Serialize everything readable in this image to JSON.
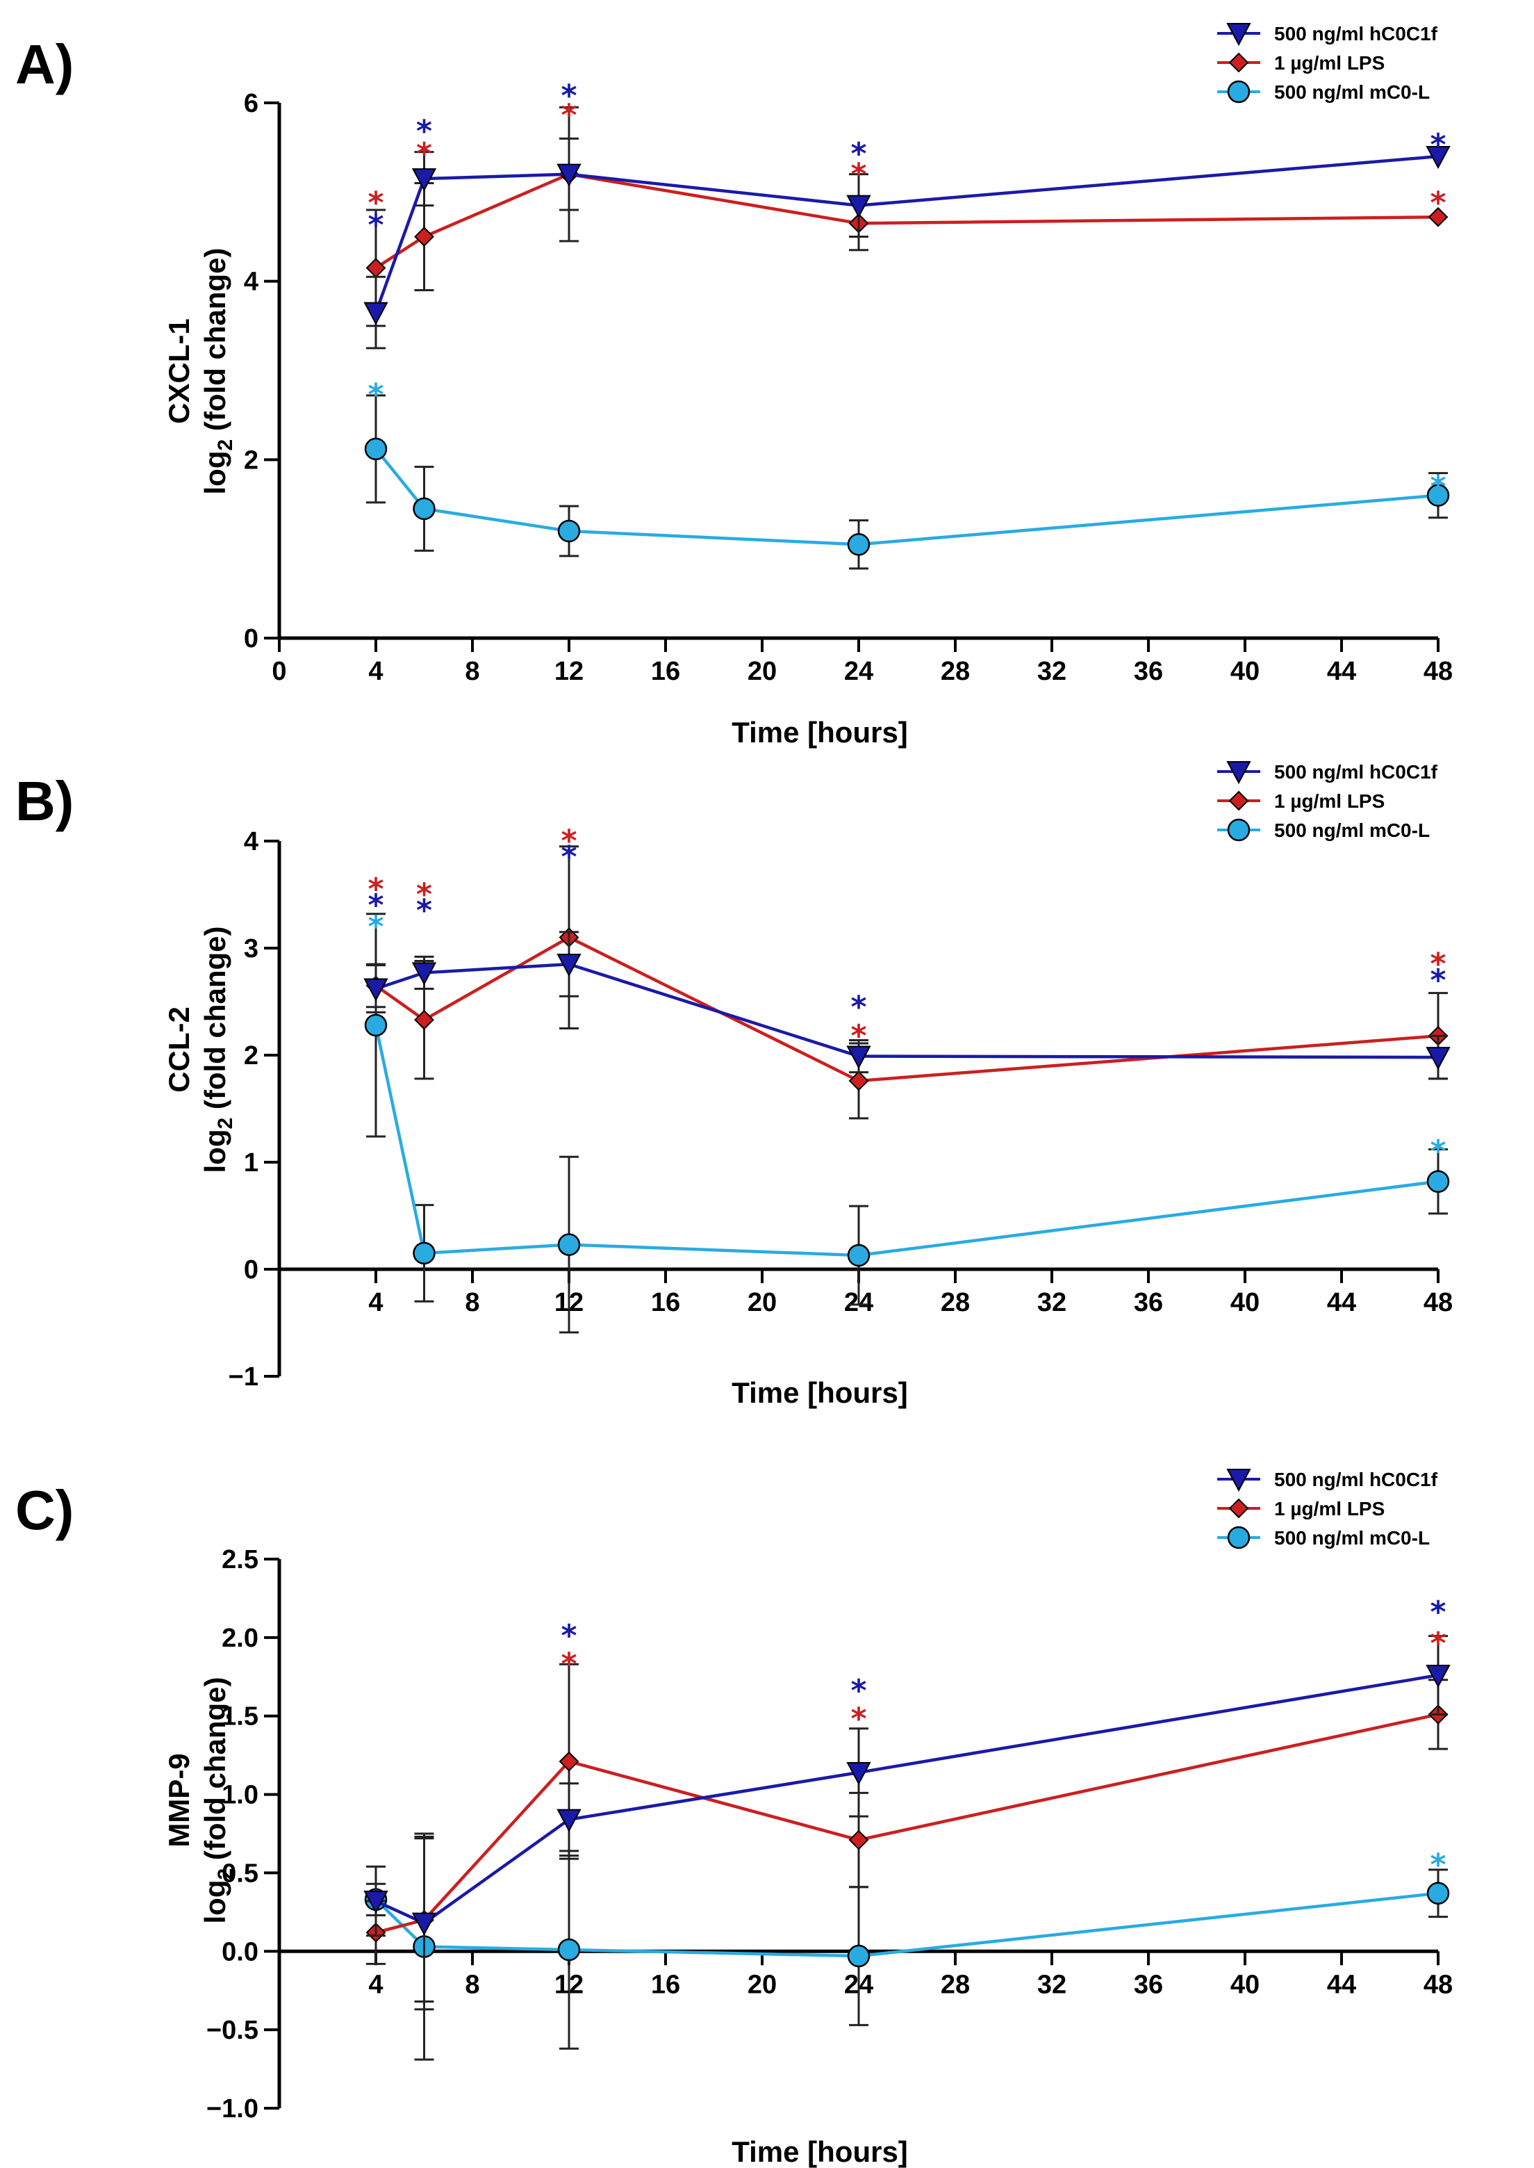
{
  "colors": {
    "hC0C1f": "#1a1aa8",
    "LPS": "#cc1f1f",
    "mC0L": "#29abe2",
    "axis": "#000000",
    "errorbar": "#222222"
  },
  "legend": {
    "hC0C1f": "500 ng/ml hC0C1f",
    "LPS": "1 µg/ml LPS",
    "mC0L": "500 ng/ml mC0-L"
  },
  "chart_data": [
    {
      "panel": "A)",
      "type": "line",
      "xlabel": "Time [hours]",
      "ylabel_line1": "CXCL-1",
      "ylabel_line2": "log",
      "ylabel_sub": "2",
      "ylabel_line3": " (fold change)",
      "xlim": [
        0,
        48
      ],
      "ylim": [
        0,
        6
      ],
      "xticks": [
        0,
        4,
        8,
        12,
        16,
        20,
        24,
        28,
        32,
        36,
        40,
        44,
        48
      ],
      "yticks": [
        0,
        2,
        4,
        6
      ],
      "x": [
        4,
        6,
        12,
        24,
        48
      ],
      "series": [
        {
          "key": "hC0C1f",
          "values": [
            3.65,
            5.15,
            5.2,
            4.85,
            5.4
          ],
          "err": [
            0.4,
            0.3,
            0.4,
            0.35,
            0.0
          ]
        },
        {
          "key": "LPS",
          "values": [
            4.15,
            4.5,
            5.2,
            4.65,
            4.72
          ],
          "err": [
            0.65,
            0.6,
            0.75,
            0.3,
            0.0
          ]
        },
        {
          "key": "mC0L",
          "values": [
            2.12,
            1.45,
            1.2,
            1.05,
            1.6
          ],
          "err": [
            0.6,
            0.47,
            0.28,
            0.27,
            0.25
          ]
        }
      ],
      "stars": [
        {
          "x": 4,
          "marks": [
            {
              "c": "LPS",
              "y": 5.0
            },
            {
              "c": "hC0C1f",
              "y": 4.75
            },
            {
              "c": "mC0L",
              "y": 2.85
            }
          ]
        },
        {
          "x": 6,
          "marks": [
            {
              "c": "hC0C1f",
              "y": 5.8
            },
            {
              "c": "LPS",
              "y": 5.55
            }
          ]
        },
        {
          "x": 12,
          "marks": [
            {
              "c": "hC0C1f",
              "y": 6.2
            },
            {
              "c": "LPS",
              "y": 5.98
            }
          ]
        },
        {
          "x": 24,
          "marks": [
            {
              "c": "hC0C1f",
              "y": 5.55
            },
            {
              "c": "LPS",
              "y": 5.32
            }
          ]
        },
        {
          "x": 48,
          "marks": [
            {
              "c": "hC0C1f",
              "y": 5.65
            },
            {
              "c": "LPS",
              "y": 5.0
            },
            {
              "c": "mC0L",
              "y": 1.82
            }
          ]
        }
      ]
    },
    {
      "panel": "B)",
      "type": "line",
      "xlabel": "Time [hours]",
      "ylabel_line1": "CCL-2",
      "ylabel_line2": "log",
      "ylabel_sub": "2",
      "ylabel_line3": " (fold change)",
      "xlim": [
        0,
        48
      ],
      "ylim": [
        -1,
        4
      ],
      "xticks": [
        4,
        8,
        12,
        16,
        20,
        24,
        28,
        32,
        36,
        40,
        44,
        48
      ],
      "yticks": [
        -1,
        0,
        1,
        2,
        3,
        4
      ],
      "x": [
        4,
        6,
        12,
        24,
        48
      ],
      "series": [
        {
          "key": "hC0C1f",
          "values": [
            2.62,
            2.77,
            2.85,
            1.99,
            1.98
          ],
          "err": [
            0.22,
            0.15,
            0.3,
            0.15,
            0.2
          ]
        },
        {
          "key": "LPS",
          "values": [
            2.65,
            2.33,
            3.1,
            1.76,
            2.18
          ],
          "err": [
            0.2,
            0.55,
            0.85,
            0.35,
            0.4
          ]
        },
        {
          "key": "mC0L",
          "values": [
            2.28,
            0.15,
            0.23,
            0.13,
            0.82
          ],
          "err": [
            1.04,
            0.45,
            0.82,
            0.46,
            0.3
          ]
        }
      ],
      "stars": [
        {
          "x": 4,
          "marks": [
            {
              "c": "LPS",
              "y": 3.65
            },
            {
              "c": "hC0C1f",
              "y": 3.5
            },
            {
              "c": "mC0L",
              "y": 3.3
            }
          ]
        },
        {
          "x": 6,
          "marks": [
            {
              "c": "LPS",
              "y": 3.6
            },
            {
              "c": "hC0C1f",
              "y": 3.45
            }
          ]
        },
        {
          "x": 12,
          "marks": [
            {
              "c": "LPS",
              "y": 4.1
            },
            {
              "c": "hC0C1f",
              "y": 3.95
            }
          ]
        },
        {
          "x": 24,
          "marks": [
            {
              "c": "hC0C1f",
              "y": 2.55
            },
            {
              "c": "LPS",
              "y": 2.28
            }
          ]
        },
        {
          "x": 48,
          "marks": [
            {
              "c": "LPS",
              "y": 2.95
            },
            {
              "c": "hC0C1f",
              "y": 2.8
            }
          ]
        },
        {
          "x": 48,
          "marks": [
            {
              "c": "mC0L",
              "y": 1.2
            }
          ]
        }
      ]
    },
    {
      "panel": "C)",
      "type": "line",
      "xlabel": "Time [hours]",
      "ylabel_line1": "MMP-9",
      "ylabel_line2": "log",
      "ylabel_sub": "2",
      "ylabel_line3": " (fold change)",
      "xlim": [
        0,
        48
      ],
      "ylim": [
        -1.0,
        2.5
      ],
      "xticks": [
        4,
        8,
        12,
        16,
        20,
        24,
        28,
        32,
        36,
        40,
        44,
        48
      ],
      "yticks": [
        -1.0,
        -0.5,
        0.0,
        0.5,
        1.0,
        1.5,
        2.0,
        2.5
      ],
      "x": [
        4,
        6,
        12,
        24,
        48
      ],
      "series": [
        {
          "key": "hC0C1f",
          "values": [
            0.32,
            0.18,
            0.84,
            1.14,
            1.76
          ],
          "err": [
            0.22,
            0.55,
            0.23,
            0.28,
            0.25
          ]
        },
        {
          "key": "LPS",
          "values": [
            0.12,
            0.2,
            1.21,
            0.71,
            1.51
          ],
          "err": [
            0.2,
            0.52,
            0.62,
            0.3,
            0.22
          ]
        },
        {
          "key": "mC0L",
          "values": [
            0.33,
            0.03,
            0.01,
            -0.03,
            0.37
          ],
          "err": [
            0.1,
            0.72,
            0.63,
            0.44,
            0.15
          ]
        }
      ],
      "stars": [
        {
          "x": 12,
          "marks": [
            {
              "c": "hC0C1f",
              "y": 2.08
            },
            {
              "c": "LPS",
              "y": 1.9
            }
          ]
        },
        {
          "x": 24,
          "marks": [
            {
              "c": "hC0C1f",
              "y": 1.73
            },
            {
              "c": "LPS",
              "y": 1.55
            }
          ]
        },
        {
          "x": 48,
          "marks": [
            {
              "c": "hC0C1f",
              "y": 2.23
            },
            {
              "c": "LPS",
              "y": 2.03
            }
          ]
        },
        {
          "x": 48,
          "marks": [
            {
              "c": "mC0L",
              "y": 0.62
            }
          ]
        }
      ]
    }
  ]
}
